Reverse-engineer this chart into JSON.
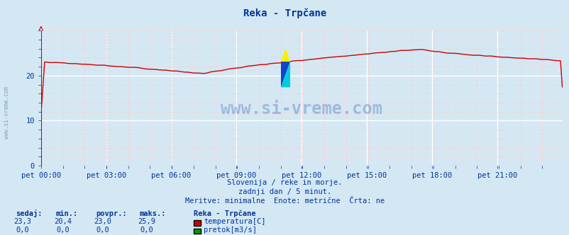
{
  "title": "Reka - Trpčane",
  "bg_color": "#d4e8f4",
  "plot_bg_color": "#d4e8f4",
  "line_color": "#cc0000",
  "text_color": "#003399",
  "grid_color_major": "#ffffff",
  "grid_color_minor": "#ffcccc",
  "xlabel_ticks": [
    "pet 00:00",
    "pet 03:00",
    "pet 06:00",
    "pet 09:00",
    "pet 12:00",
    "pet 15:00",
    "pet 18:00",
    "pet 21:00"
  ],
  "ylim": [
    0,
    30
  ],
  "xlim": [
    0,
    287
  ],
  "subtitle1": "Slovenija / reke in morje.",
  "subtitle2": "zadnji dan / 5 minut.",
  "subtitle3": "Meritve: minimalne  Enote: metrične  Črta: ne",
  "watermark": "www.si-vreme.com",
  "legend_title": "Reka - Trpčane",
  "legend_items": [
    {
      "label": "temperatura[C]",
      "color": "#cc0000"
    },
    {
      "label": "pretok[m3/s]",
      "color": "#009900"
    }
  ],
  "stats_headers": [
    "sedaj:",
    "min.:",
    "povpr.:",
    "maks.:"
  ],
  "stats_temp": [
    "23,3",
    "20,4",
    "23,0",
    "25,9"
  ],
  "stats_pretok": [
    "0,0",
    "0,0",
    "0,0",
    "0,0"
  ]
}
